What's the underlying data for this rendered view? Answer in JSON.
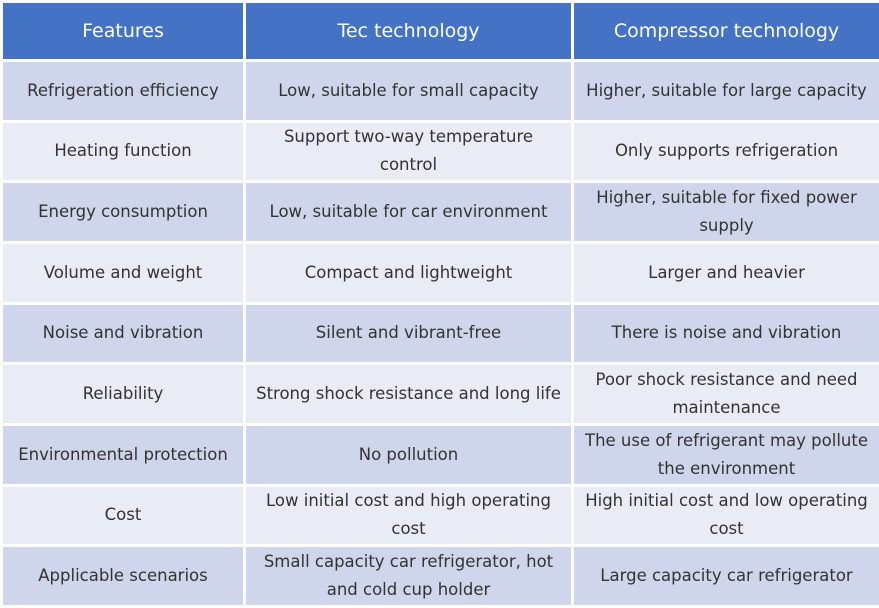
{
  "table": {
    "headers": [
      "Features",
      "Tec technology",
      "Compressor technology"
    ],
    "rows": [
      [
        "Refrigeration efficiency",
        "Low, suitable for small capacity",
        "Higher, suitable for large capacity"
      ],
      [
        "Heating function",
        "Support two-way temperature control",
        "Only supports refrigeration"
      ],
      [
        "Energy consumption",
        "Low, suitable for car environment",
        "Higher, suitable for fixed power supply"
      ],
      [
        "Volume and weight",
        "Compact and lightweight",
        "Larger and heavier"
      ],
      [
        "Noise and vibration",
        "Silent and vibrant-free",
        "There is noise and vibration"
      ],
      [
        "Reliability",
        "Strong shock resistance and long life",
        "Poor shock resistance and need maintenance"
      ],
      [
        "Environmental protection",
        "No pollution",
        "The use of refrigerant may pollute the environment"
      ],
      [
        "Cost",
        "Low initial cost and high operating cost",
        "High initial cost and low operating cost"
      ],
      [
        "Applicable scenarios",
        "Small capacity car refrigerator, hot and cold cup holder",
        "Large capacity car refrigerator"
      ]
    ]
  },
  "colors": {
    "header_bg": "#4472c4",
    "row_odd_bg": "#cfd5ea",
    "row_even_bg": "#e9ebf5"
  }
}
